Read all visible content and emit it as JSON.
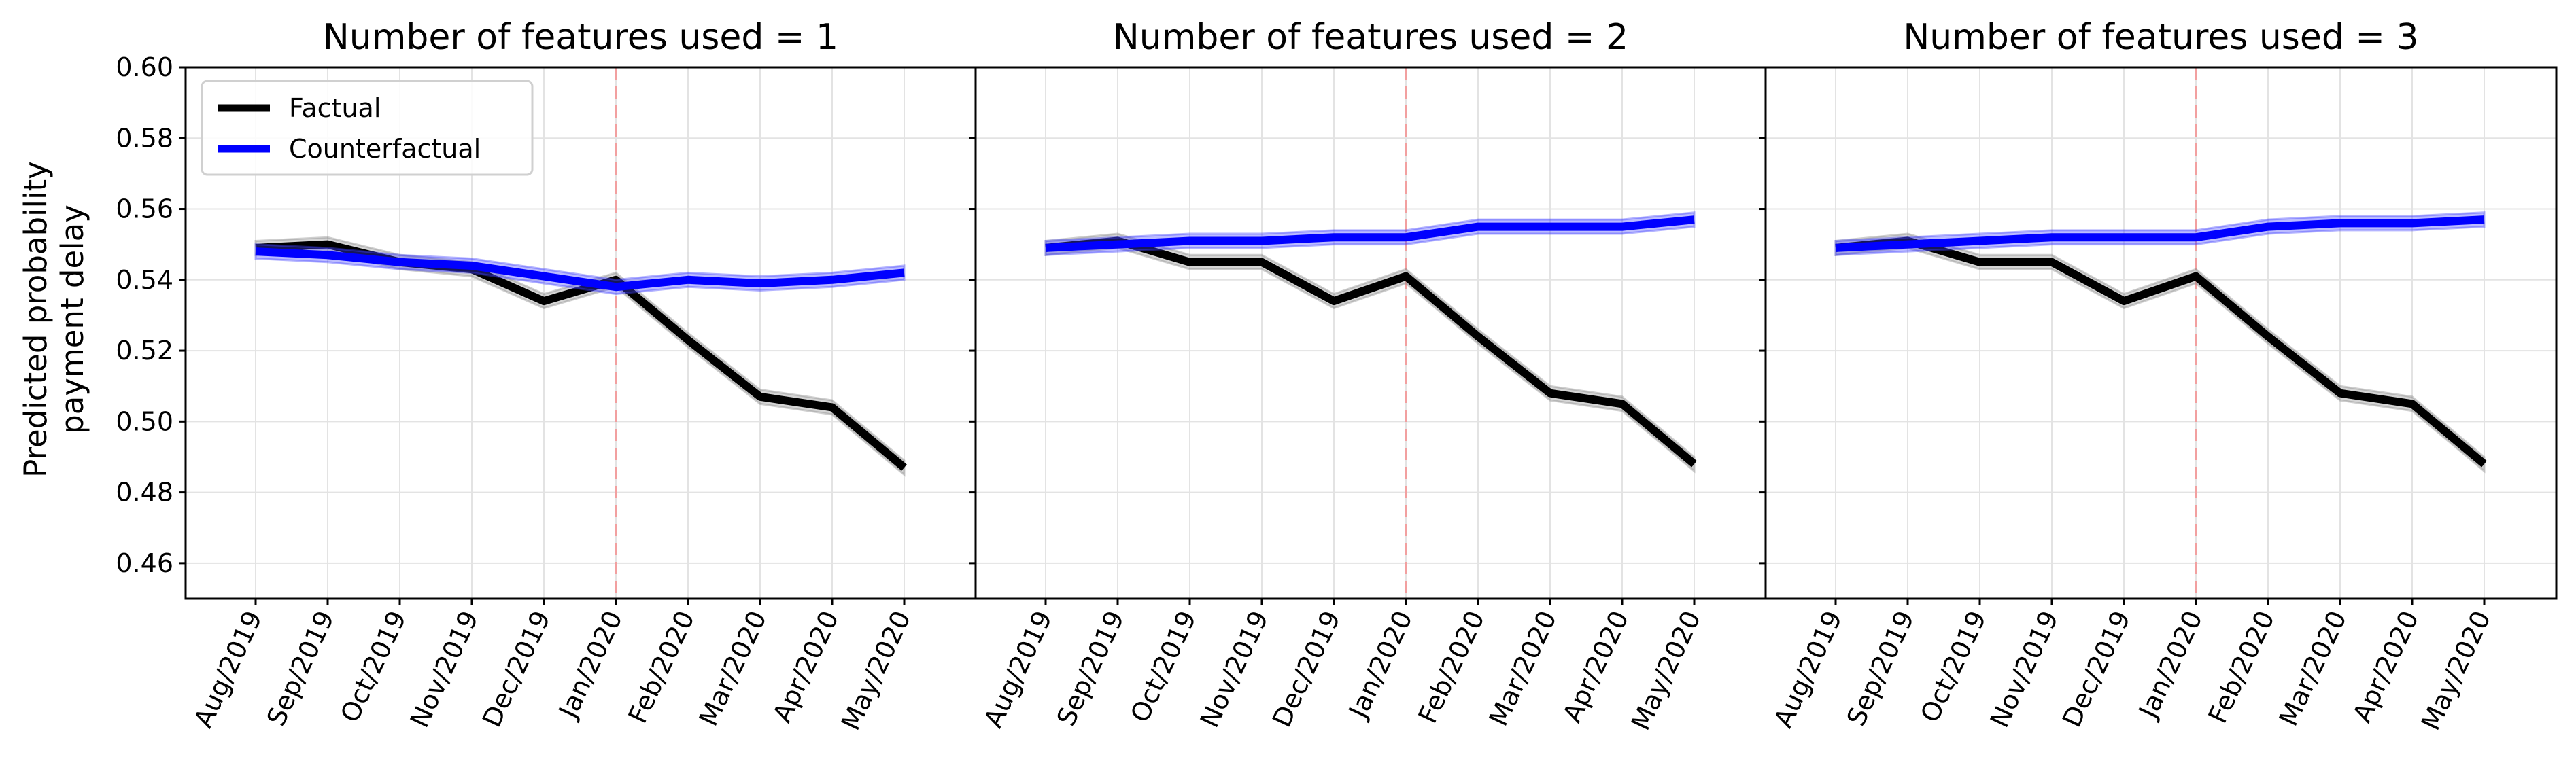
{
  "figure": {
    "ylabel_line1": "Predicted probability",
    "ylabel_line2": "payment delay"
  },
  "chart_data": [
    {
      "type": "line",
      "title": "Number of features used = 1",
      "categories": [
        "Aug/2019",
        "Sep/2019",
        "Oct/2019",
        "Nov/2019",
        "Dec/2019",
        "Jan/2020",
        "Feb/2020",
        "Mar/2020",
        "Apr/2020",
        "May/2020"
      ],
      "ylim": [
        0.45,
        0.6
      ],
      "yticks": [
        "0.46",
        "0.48",
        "0.50",
        "0.52",
        "0.54",
        "0.56",
        "0.58",
        "0.60"
      ],
      "grid": true,
      "legend_position": "top-left",
      "intervention": "Jan/2020",
      "series": [
        {
          "name": "Factual",
          "color": "#000000",
          "band_color": "#888888",
          "values": [
            0.549,
            0.55,
            0.545,
            0.543,
            0.534,
            0.54,
            0.523,
            0.507,
            0.504,
            0.487
          ],
          "band": 0.002
        },
        {
          "name": "Counterfactual",
          "color": "#0000ff",
          "band_color": "#4040ff",
          "values": [
            0.548,
            0.547,
            0.545,
            0.544,
            0.541,
            0.538,
            0.54,
            0.539,
            0.54,
            0.542
          ],
          "band": 0.002
        }
      ]
    },
    {
      "type": "line",
      "title": "Number of features used = 2",
      "categories": [
        "Aug/2019",
        "Sep/2019",
        "Oct/2019",
        "Nov/2019",
        "Dec/2019",
        "Jan/2020",
        "Feb/2020",
        "Mar/2020",
        "Apr/2020",
        "May/2020"
      ],
      "ylim": [
        0.45,
        0.6
      ],
      "grid": true,
      "intervention": "Jan/2020",
      "series": [
        {
          "name": "Factual",
          "color": "#000000",
          "band_color": "#888888",
          "values": [
            0.549,
            0.551,
            0.545,
            0.545,
            0.534,
            0.541,
            0.524,
            0.508,
            0.505,
            0.488
          ],
          "band": 0.002
        },
        {
          "name": "Counterfactual",
          "color": "#0000ff",
          "band_color": "#4040ff",
          "values": [
            0.549,
            0.55,
            0.551,
            0.551,
            0.552,
            0.552,
            0.555,
            0.555,
            0.555,
            0.557
          ],
          "band": 0.002
        }
      ]
    },
    {
      "type": "line",
      "title": "Number of features used = 3",
      "categories": [
        "Aug/2019",
        "Sep/2019",
        "Oct/2019",
        "Nov/2019",
        "Dec/2019",
        "Jan/2020",
        "Feb/2020",
        "Mar/2020",
        "Apr/2020",
        "May/2020"
      ],
      "ylim": [
        0.45,
        0.6
      ],
      "grid": true,
      "intervention": "Jan/2020",
      "series": [
        {
          "name": "Factual",
          "color": "#000000",
          "band_color": "#888888",
          "values": [
            0.549,
            0.551,
            0.545,
            0.545,
            0.534,
            0.541,
            0.524,
            0.508,
            0.505,
            0.488
          ],
          "band": 0.002
        },
        {
          "name": "Counterfactual",
          "color": "#0000ff",
          "band_color": "#4040ff",
          "values": [
            0.549,
            0.55,
            0.551,
            0.552,
            0.552,
            0.552,
            0.555,
            0.556,
            0.556,
            0.557
          ],
          "band": 0.002
        }
      ]
    }
  ]
}
